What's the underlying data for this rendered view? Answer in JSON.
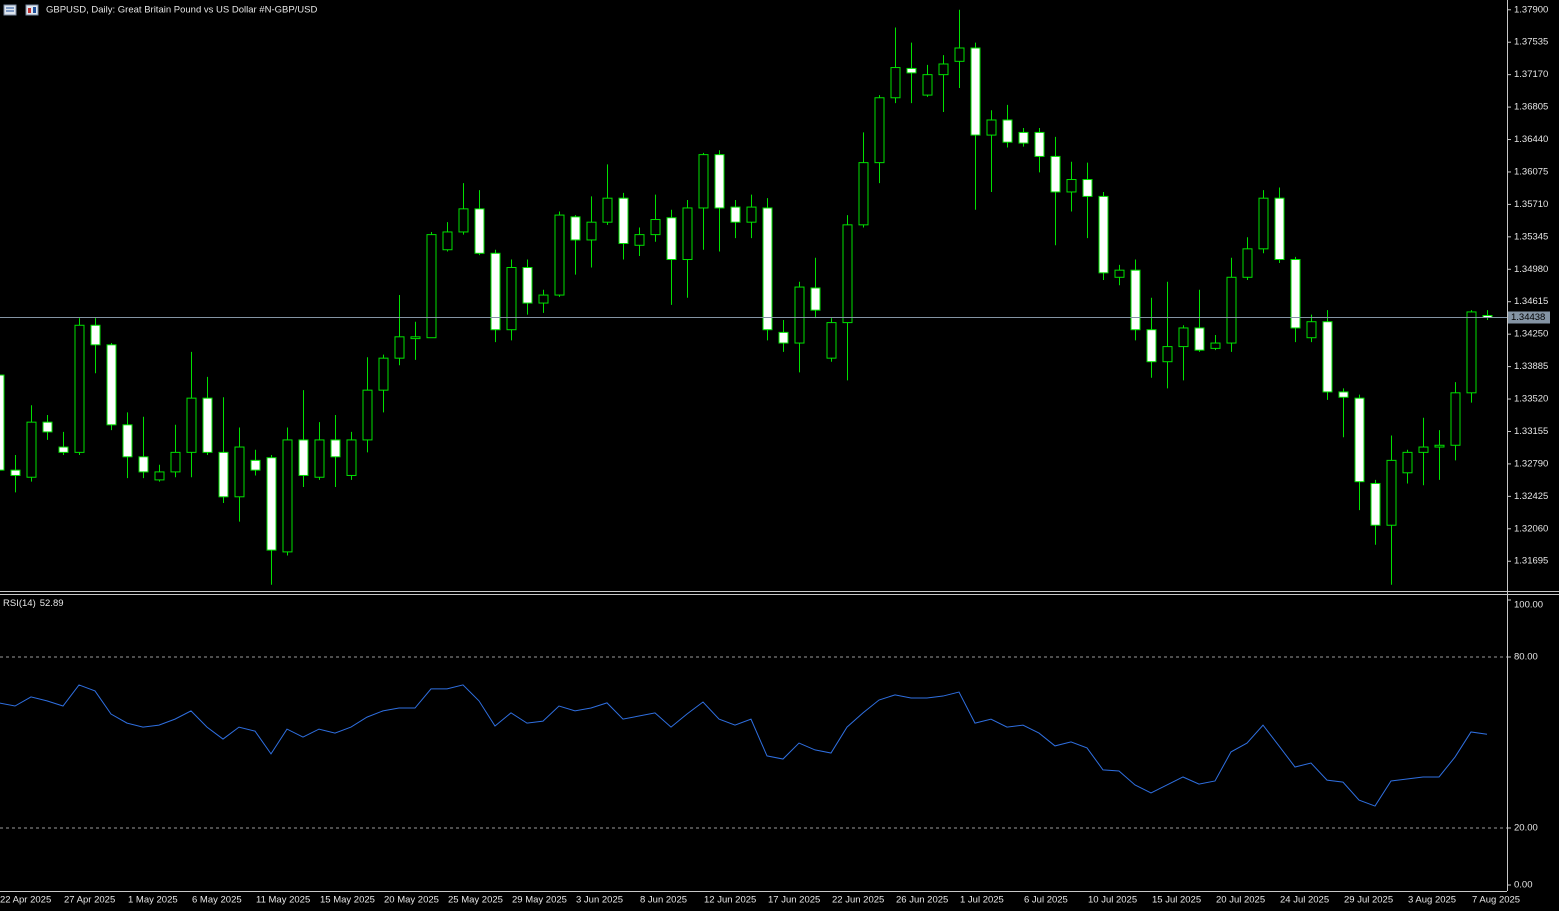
{
  "chart_data": [
    {
      "type": "candlestick",
      "title": "GBPUSD, Daily:  Great Britain Pound vs US Dollar #N-GBP/USD",
      "categories": [
        "22 Apr 2025",
        null,
        null,
        null,
        "27 Apr 2025",
        null,
        null,
        null,
        "1 May 2025",
        null,
        null,
        null,
        "6 May 2025",
        null,
        null,
        null,
        "11 May 2025",
        null,
        null,
        null,
        "15 May 2025",
        null,
        null,
        null,
        "20 May 2025",
        null,
        null,
        null,
        "25 May 2025",
        null,
        null,
        null,
        "29 May 2025",
        null,
        null,
        null,
        "3 Jun 2025",
        null,
        null,
        null,
        "8 Jun 2025",
        null,
        null,
        null,
        "12 Jun 2025",
        null,
        null,
        null,
        "17 Jun 2025",
        null,
        null,
        null,
        "22 Jun 2025",
        null,
        null,
        null,
        "26 Jun 2025",
        null,
        null,
        null,
        "1 Jul 2025",
        null,
        null,
        null,
        "6 Jul 2025",
        null,
        null,
        null,
        "10 Jul 2025",
        null,
        null,
        null,
        "15 Jul 2025",
        null,
        null,
        null,
        "20 Jul 2025",
        null,
        null,
        null,
        "24 Jul 2025",
        null,
        null,
        null,
        "29 Jul 2025",
        null,
        null,
        null,
        "3 Aug 2025",
        null,
        null,
        null,
        "7 Aug 2025",
        null
      ],
      "open": [
        1.3379,
        1.3272,
        1.3264,
        1.3326,
        1.3298,
        1.3292,
        1.3435,
        1.3413,
        1.3323,
        1.3287,
        1.3261,
        1.327,
        1.3292,
        1.3353,
        1.3292,
        1.3242,
        1.3283,
        1.3286,
        1.318,
        1.3306,
        1.3264,
        1.3306,
        1.3266,
        1.3306,
        1.3362,
        1.3398,
        1.342,
        1.3421,
        1.352,
        1.354,
        1.3566,
        1.3516,
        1.343,
        1.35,
        1.346,
        1.3469,
        1.3557,
        1.3531,
        1.3551,
        1.3578,
        1.3525,
        1.3537,
        1.3556,
        1.3509,
        1.3567,
        1.3627,
        1.3568,
        1.3551,
        1.3567,
        1.3427,
        1.3415,
        1.3477,
        1.3398,
        1.3438,
        1.3548,
        1.3618,
        1.3691,
        1.3724,
        1.3694,
        1.3717,
        1.3732,
        1.3747,
        1.3649,
        1.3666,
        1.3652,
        1.3652,
        1.3625,
        1.3585,
        1.3599,
        1.358,
        1.3489,
        1.3497,
        1.343,
        1.3394,
        1.3411,
        1.3432,
        1.3409,
        1.3415,
        1.3489,
        1.3521,
        1.3578,
        1.3509,
        1.3421,
        1.3439,
        1.336,
        1.3353,
        1.3257,
        1.321,
        1.3269,
        1.3292,
        1.3298,
        1.33,
        1.3359,
        1.3446
      ],
      "high": [
        1.3385,
        1.3289,
        1.3345,
        1.3334,
        1.3315,
        1.3443,
        1.3443,
        1.3415,
        1.3337,
        1.3332,
        1.3278,
        1.3323,
        1.3405,
        1.3377,
        1.3354,
        1.332,
        1.3295,
        1.3289,
        1.332,
        1.3362,
        1.3326,
        1.3334,
        1.3315,
        1.3399,
        1.3402,
        1.3469,
        1.3439,
        1.354,
        1.3551,
        1.3595,
        1.3587,
        1.352,
        1.3509,
        1.3509,
        1.3475,
        1.3563,
        1.3559,
        1.358,
        1.3616,
        1.3584,
        1.3545,
        1.3582,
        1.3565,
        1.3576,
        1.3629,
        1.3632,
        1.3576,
        1.3582,
        1.3578,
        1.3441,
        1.3484,
        1.3511,
        1.3443,
        1.3559,
        1.3652,
        1.3694,
        1.377,
        1.3753,
        1.3728,
        1.3739,
        1.379,
        1.3753,
        1.3677,
        1.3683,
        1.3657,
        1.3657,
        1.3647,
        1.3619,
        1.3618,
        1.3585,
        1.3503,
        1.3509,
        1.3466,
        1.3484,
        1.3435,
        1.3475,
        1.3424,
        1.3511,
        1.3534,
        1.3587,
        1.359,
        1.3512,
        1.3447,
        1.3452,
        1.3364,
        1.3357,
        1.3261,
        1.3311,
        1.3295,
        1.3331,
        1.3317,
        1.3371,
        1.3452,
        1.3452
      ],
      "low": [
        1.3266,
        1.3247,
        1.3259,
        1.3306,
        1.3289,
        1.3289,
        1.3381,
        1.3317,
        1.3263,
        1.3263,
        1.3259,
        1.3264,
        1.3264,
        1.3289,
        1.3235,
        1.3214,
        1.3266,
        1.3143,
        1.3176,
        1.3253,
        1.3261,
        1.3253,
        1.3261,
        1.3292,
        1.3337,
        1.339,
        1.3396,
        1.3421,
        1.3518,
        1.3537,
        1.3514,
        1.3416,
        1.3418,
        1.3447,
        1.3449,
        1.3467,
        1.3492,
        1.35,
        1.3548,
        1.3509,
        1.3513,
        1.3529,
        1.3458,
        1.3466,
        1.352,
        1.3518,
        1.3533,
        1.3533,
        1.3418,
        1.3405,
        1.3382,
        1.3443,
        1.3394,
        1.3373,
        1.3545,
        1.3595,
        1.3685,
        1.3685,
        1.3692,
        1.3675,
        1.3702,
        1.3565,
        1.3585,
        1.3635,
        1.3636,
        1.3607,
        1.3525,
        1.3563,
        1.3533,
        1.3486,
        1.348,
        1.3418,
        1.3376,
        1.3364,
        1.3373,
        1.3405,
        1.3407,
        1.3405,
        1.3486,
        1.3516,
        1.3505,
        1.3416,
        1.3416,
        1.3351,
        1.3309,
        1.3227,
        1.3188,
        1.3143,
        1.3257,
        1.3255,
        1.3261,
        1.3283,
        1.3348,
        1.3441
      ],
      "close": [
        1.3272,
        1.3266,
        1.3326,
        1.3315,
        1.3292,
        1.3435,
        1.3413,
        1.3323,
        1.3287,
        1.327,
        1.327,
        1.3292,
        1.3353,
        1.3292,
        1.3242,
        1.3298,
        1.3272,
        1.3182,
        1.3306,
        1.3266,
        1.3306,
        1.3287,
        1.3306,
        1.3362,
        1.3398,
        1.3422,
        1.3422,
        1.3537,
        1.354,
        1.3566,
        1.3516,
        1.343,
        1.35,
        1.346,
        1.3469,
        1.3559,
        1.3531,
        1.3551,
        1.3578,
        1.3527,
        1.3537,
        1.3554,
        1.3509,
        1.3567,
        1.3627,
        1.3567,
        1.3551,
        1.3568,
        1.343,
        1.3415,
        1.3478,
        1.3452,
        1.3438,
        1.3548,
        1.3618,
        1.3691,
        1.3725,
        1.3719,
        1.3717,
        1.3729,
        1.3747,
        1.3649,
        1.3666,
        1.3641,
        1.364,
        1.3625,
        1.3585,
        1.3599,
        1.358,
        1.3494,
        1.3497,
        1.343,
        1.3394,
        1.3411,
        1.3432,
        1.3407,
        1.3415,
        1.3489,
        1.3521,
        1.3578,
        1.3509,
        1.3432,
        1.3439,
        1.336,
        1.3354,
        1.3259,
        1.321,
        1.3283,
        1.3292,
        1.3298,
        1.33,
        1.3359,
        1.345,
        1.34438
      ],
      "up_color": "#000000",
      "down_color": "#ffffff",
      "wick_color": "#00e000",
      "price_line": true,
      "price_line_color": "#8494a4",
      "ylim": [
        1.3136,
        1.3801
      ],
      "yticks": [
        {
          "value": 1.379,
          "label": "1.37900"
        },
        1.37535,
        {
          "value": 1.3717,
          "label": "1.37170"
        },
        1.36805,
        {
          "value": 1.3644,
          "label": "1.36440"
        },
        1.36075,
        {
          "value": 1.3571,
          "label": "1.35710"
        },
        1.35345,
        {
          "value": 1.3498,
          "label": "1.34980"
        },
        1.34615,
        {
          "value": 1.3425,
          "label": "1.34250"
        },
        1.33885,
        {
          "value": 1.3352,
          "label": "1.33520"
        },
        1.33155,
        {
          "value": 1.3279,
          "label": "1.32790"
        },
        1.32425,
        {
          "value": 1.3206,
          "label": "1.32060"
        },
        1.31695
      ]
    },
    {
      "type": "line",
      "title": "RSI(14)",
      "color": "#2f6fe0",
      "values": [
        63.9,
        62.8,
        66.0,
        64.6,
        62.8,
        70.2,
        68.1,
        60.0,
        56.8,
        55.4,
        56.1,
        58.2,
        61.1,
        55.4,
        51.2,
        55.4,
        54.0,
        46.0,
        54.7,
        51.9,
        54.7,
        53.3,
        55.4,
        58.9,
        61.1,
        62.1,
        62.1,
        68.8,
        68.8,
        70.2,
        64.6,
        55.8,
        60.4,
        56.8,
        57.5,
        62.8,
        61.1,
        62.1,
        63.9,
        58.2,
        59.3,
        60.4,
        55.4,
        60.0,
        64.2,
        58.2,
        56.1,
        58.2,
        45.3,
        44.2,
        49.8,
        47.4,
        46.3,
        55.4,
        60.4,
        64.9,
        66.7,
        65.6,
        65.6,
        66.3,
        67.7,
        56.8,
        58.2,
        55.4,
        56.1,
        53.3,
        48.8,
        50.2,
        48.1,
        40.4,
        40.0,
        35.1,
        32.3,
        35.1,
        37.9,
        35.4,
        36.5,
        46.7,
        49.8,
        56.1,
        48.8,
        41.4,
        42.8,
        36.8,
        36.1,
        29.8,
        27.7,
        36.5,
        37.2,
        37.9,
        37.9,
        44.9,
        53.7,
        52.89
      ],
      "ylim": [
        0,
        100
      ],
      "yticks": [
        {
          "value": 100,
          "label": "100.00"
        },
        {
          "value": 80,
          "label": "80.00"
        },
        {
          "value": 20,
          "label": "20.00"
        },
        {
          "value": 0,
          "label": "0.00"
        }
      ]
    }
  ]
}
